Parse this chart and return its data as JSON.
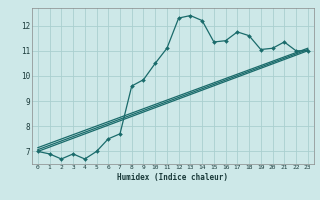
{
  "xlabel": "Humidex (Indice chaleur)",
  "bg_color": "#cde8e8",
  "grid_color": "#aacfcf",
  "line_color": "#1a6b6b",
  "xlim": [
    -0.5,
    23.5
  ],
  "ylim": [
    6.5,
    12.7
  ],
  "xticks": [
    0,
    1,
    2,
    3,
    4,
    5,
    6,
    7,
    8,
    9,
    10,
    11,
    12,
    13,
    14,
    15,
    16,
    17,
    18,
    19,
    20,
    21,
    22,
    23
  ],
  "yticks": [
    7,
    8,
    9,
    10,
    11,
    12
  ],
  "curve1_x": [
    0,
    1,
    2,
    3,
    4,
    5,
    6,
    7,
    8,
    9,
    10,
    11,
    12,
    13,
    14,
    15,
    16,
    17,
    18,
    19,
    20,
    21,
    22,
    23
  ],
  "curve1_y": [
    7.0,
    6.9,
    6.7,
    6.9,
    6.7,
    7.0,
    7.5,
    7.7,
    9.6,
    9.85,
    10.5,
    11.1,
    12.3,
    12.4,
    12.2,
    11.35,
    11.4,
    11.75,
    11.6,
    11.05,
    11.1,
    11.35,
    11.0,
    11.0
  ],
  "line2_x": [
    0,
    23
  ],
  "line2_y": [
    7.0,
    11.0
  ],
  "line3_x": [
    0,
    23
  ],
  "line3_y": [
    7.15,
    11.1
  ],
  "line4_x": [
    0,
    23
  ],
  "line4_y": [
    7.07,
    11.05
  ]
}
